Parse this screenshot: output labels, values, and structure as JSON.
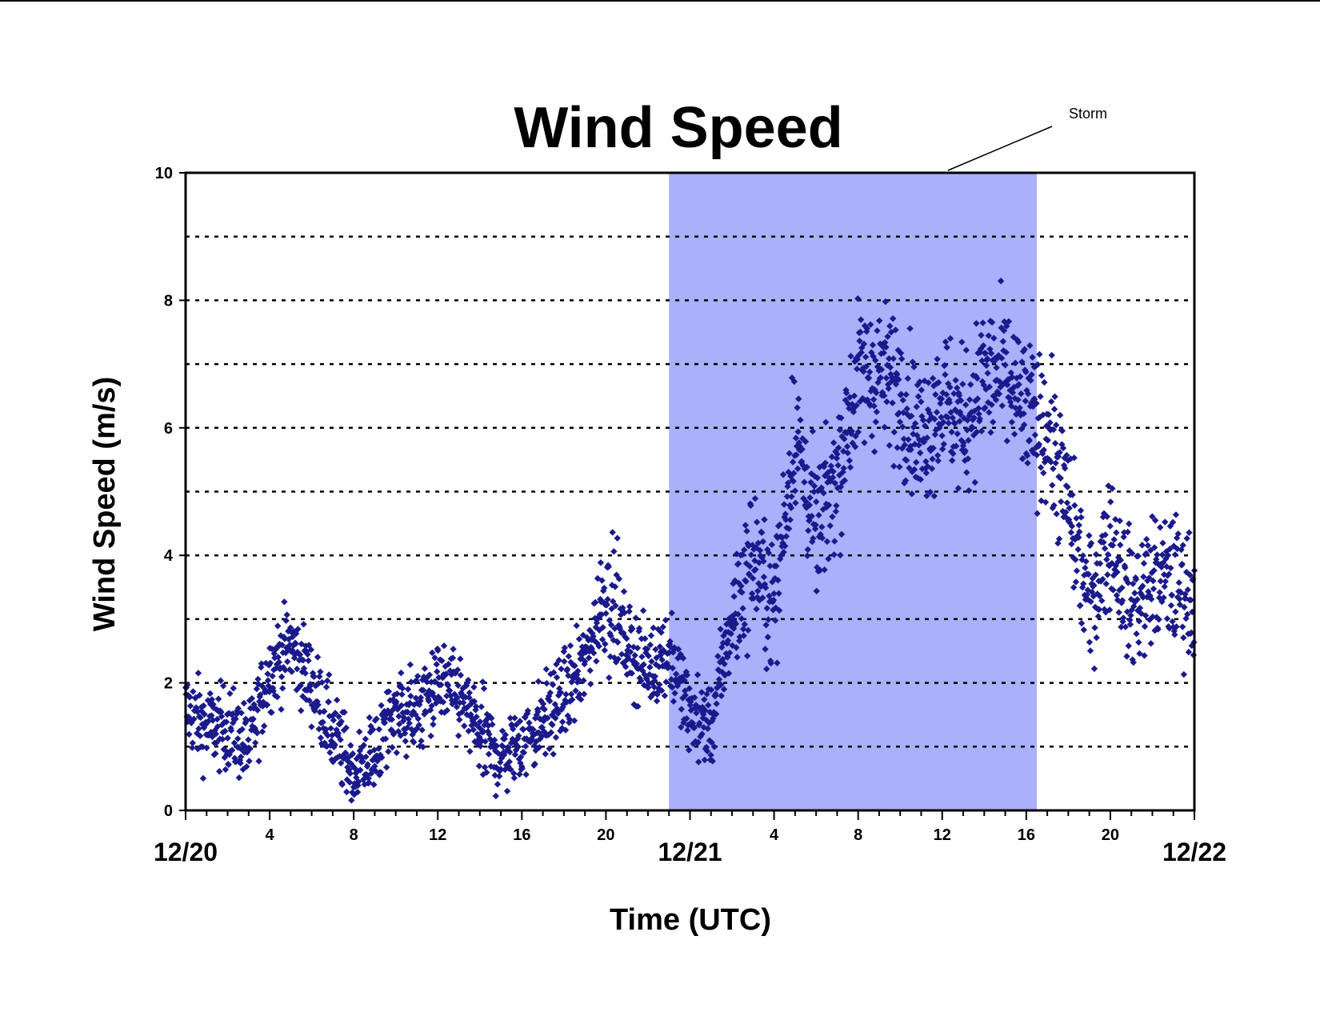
{
  "colors": {
    "marker": "#1a1a8c",
    "storm_band": "#aab0fa",
    "grid": "#000000"
  },
  "chart_data": {
    "type": "scatter",
    "title": "Wind Speed",
    "xlabel": "Time (UTC)",
    "ylabel": "Wind Speed (m/s)",
    "ylim": [
      0,
      10
    ],
    "yticks": [
      "0",
      "2",
      "4",
      "6",
      "8",
      "10"
    ],
    "x_hour_ticks": [
      {
        "hour": 4,
        "label": "4"
      },
      {
        "hour": 8,
        "label": "8"
      },
      {
        "hour": 12,
        "label": "12"
      },
      {
        "hour": 16,
        "label": "16"
      },
      {
        "hour": 20,
        "label": "20"
      },
      {
        "hour": 28,
        "label": "4"
      },
      {
        "hour": 32,
        "label": "8"
      },
      {
        "hour": 36,
        "label": "12"
      },
      {
        "hour": 40,
        "label": "16"
      },
      {
        "hour": 44,
        "label": "20"
      }
    ],
    "date_labels": [
      {
        "hour": 0,
        "label": "12/20"
      },
      {
        "hour": 24,
        "label": "12/21"
      },
      {
        "hour": 48,
        "label": "12/22"
      }
    ],
    "xlim_hours": [
      0,
      48
    ],
    "grid": "horizontal dotted at every 1 m/s",
    "annotation": {
      "label": "Storm",
      "start_hour": 23,
      "end_hour": 40.5
    },
    "series": [
      {
        "marker": "diamond",
        "hourly_approx": [
          [
            0,
            1.6
          ],
          [
            1,
            1.3
          ],
          [
            2,
            1.3
          ],
          [
            3,
            1.0
          ],
          [
            4,
            2.2
          ],
          [
            5,
            2.6
          ],
          [
            6,
            2.0
          ],
          [
            7,
            1.2
          ],
          [
            8,
            0.6
          ],
          [
            9,
            0.9
          ],
          [
            10,
            1.6
          ],
          [
            11,
            1.5
          ],
          [
            12,
            2.0
          ],
          [
            13,
            1.8
          ],
          [
            14,
            1.2
          ],
          [
            15,
            0.8
          ],
          [
            16,
            1.1
          ],
          [
            17,
            1.4
          ],
          [
            18,
            1.8
          ],
          [
            19,
            2.3
          ],
          [
            20,
            3.5
          ],
          [
            21,
            2.6
          ],
          [
            22,
            2.2
          ],
          [
            23,
            2.5
          ],
          [
            24,
            1.5
          ],
          [
            25,
            1.3
          ],
          [
            26,
            3.0
          ],
          [
            27,
            4.0
          ],
          [
            28,
            3.2
          ],
          [
            29,
            6.0
          ],
          [
            30,
            4.3
          ],
          [
            31,
            5.3
          ],
          [
            32,
            6.8
          ],
          [
            33,
            6.9
          ],
          [
            34,
            6.6
          ],
          [
            35,
            5.8
          ],
          [
            36,
            6.5
          ],
          [
            37,
            6.0
          ],
          [
            38,
            6.8
          ],
          [
            39,
            6.8
          ],
          [
            40,
            6.2
          ],
          [
            41,
            6.0
          ],
          [
            42,
            4.8
          ],
          [
            43,
            3.2
          ],
          [
            44,
            4.3
          ],
          [
            45,
            3.2
          ],
          [
            46,
            3.6
          ],
          [
            47,
            3.6
          ],
          [
            48,
            3.3
          ]
        ]
      }
    ]
  }
}
